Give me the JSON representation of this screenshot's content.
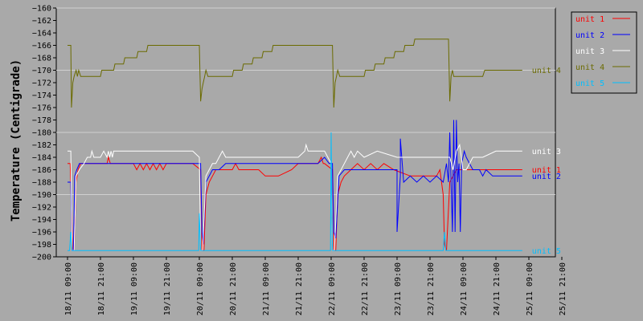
{
  "chart_data": {
    "type": "line",
    "title": "",
    "xlabel": "",
    "ylabel": "Temperature (Centigrade)",
    "ylim": [
      -200,
      -160
    ],
    "yticks": [
      -160,
      -162,
      -164,
      -166,
      -168,
      -170,
      -172,
      -174,
      -176,
      -178,
      -180,
      -182,
      -184,
      -186,
      -188,
      -190,
      -192,
      -194,
      -196,
      -198,
      -200
    ],
    "xlim": [
      0,
      7.5
    ],
    "xtick_labels": [
      "18/11 09:00",
      "18/11 21:00",
      "19/11 09:00",
      "19/11 21:00",
      "20/11 09:00",
      "20/11 21:00",
      "21/11 09:00",
      "21/11 21:00",
      "22/11 09:00",
      "22/11 21:00",
      "23/11 09:00",
      "23/11 21:00",
      "24/11 09:00",
      "24/11 21:00",
      "25/11 09:00",
      "25/11 21:00"
    ],
    "xtick_values": [
      0,
      0.5,
      1,
      1.5,
      2,
      2.5,
      3,
      3.5,
      4,
      4.5,
      5,
      5.5,
      6,
      6.5,
      7,
      7.5
    ],
    "grid": true,
    "legend_position": "top-right",
    "series": [
      {
        "name": "unit 1",
        "color": "#ff0000",
        "end_label": "unit 1",
        "x": [
          0,
          0.04,
          0.08,
          0.1,
          0.13,
          0.16,
          0.2,
          0.25,
          0.3,
          0.6,
          0.62,
          0.65,
          0.67,
          1,
          1.05,
          1.1,
          1.15,
          1.2,
          1.25,
          1.3,
          1.35,
          1.4,
          1.45,
          1.5,
          1.55,
          1.6,
          1.65,
          1.7,
          1.9,
          2.02,
          2.04,
          2.07,
          2.1,
          2.15,
          2.2,
          2.25,
          2.35,
          2.5,
          2.55,
          2.6,
          2.65,
          2.9,
          3.0,
          3.2,
          3.4,
          3.5,
          3.7,
          3.8,
          3.85,
          3.88,
          3.9,
          4.02,
          4.04,
          4.07,
          4.1,
          4.15,
          4.2,
          4.3,
          4.4,
          4.5,
          4.6,
          4.7,
          4.8,
          4.95,
          5.2,
          5.4,
          5.55,
          5.6,
          5.65,
          5.7,
          5.72,
          5.75,
          5.8,
          5.85,
          5.9,
          6.0,
          6.1,
          6.2,
          6.3,
          6.5,
          6.6,
          6.9
        ],
        "y": [
          -185,
          -185,
          -199,
          -199,
          -188,
          -186,
          -185,
          -185,
          -185,
          -185,
          -184,
          -185,
          -185,
          -185,
          -186,
          -185,
          -186,
          -185,
          -186,
          -185,
          -186,
          -185,
          -186,
          -185,
          -185,
          -185,
          -185,
          -185,
          -185,
          -186,
          -199,
          -199,
          -190,
          -188,
          -187,
          -186,
          -186,
          -186,
          -185,
          -186,
          -186,
          -186,
          -187,
          -187,
          -186,
          -185,
          -185,
          -185,
          -184,
          -185,
          -185,
          -186,
          -199,
          -199,
          -190,
          -188,
          -187,
          -186,
          -185,
          -186,
          -185,
          -186,
          -185,
          -186,
          -187,
          -187,
          -187,
          -187,
          -186,
          -190,
          -198,
          -199,
          -188,
          -187,
          -186,
          -186,
          -186,
          -186,
          -186,
          -186,
          -186,
          -186
        ]
      },
      {
        "name": "unit 2",
        "color": "#0000ff",
        "end_label": "unit 2",
        "x": [
          0,
          0.05,
          0.07,
          0.09,
          0.11,
          0.14,
          0.18,
          0.22,
          0.3,
          1,
          1.5,
          1.9,
          2.0,
          2.02,
          2.04,
          2.06,
          2.1,
          2.15,
          2.2,
          2.3,
          2.4,
          2.8,
          3.3,
          3.8,
          3.9,
          3.97,
          4.02,
          4.04,
          4.07,
          4.12,
          4.2,
          4.3,
          4.9,
          5.0,
          5.0,
          5.05,
          5.05,
          5.1,
          5.2,
          5.3,
          5.4,
          5.5,
          5.6,
          5.7,
          5.75,
          5.78,
          5.8,
          5.82,
          5.84,
          5.86,
          5.88,
          5.9,
          5.92,
          5.94,
          5.96,
          5.98,
          6.0,
          6.02,
          6.05,
          6.1,
          6.15,
          6.2,
          6.25,
          6.3,
          6.35,
          6.45,
          6.55,
          6.9
        ],
        "y": [
          -188,
          -188,
          -199,
          -199,
          -187,
          -186,
          -185,
          -185,
          -185,
          -185,
          -185,
          -185,
          -185,
          -185,
          -196,
          -198,
          -188,
          -187,
          -186,
          -186,
          -185,
          -185,
          -185,
          -185,
          -184,
          -185,
          -185,
          -196,
          -197,
          -187,
          -186,
          -186,
          -186,
          -186,
          -196,
          -187,
          -181,
          -188,
          -187,
          -188,
          -187,
          -188,
          -187,
          -188,
          -185,
          -188,
          -180,
          -188,
          -196,
          -178,
          -196,
          -178,
          -188,
          -185,
          -196,
          -185,
          -184,
          -183,
          -184,
          -185,
          -186,
          -186,
          -186,
          -187,
          -186,
          -187,
          -187,
          -187
        ]
      },
      {
        "name": "unit 3",
        "color": "#ffffff",
        "end_label": "unit 3",
        "x": [
          0,
          0.05,
          0.07,
          0.1,
          0.13,
          0.18,
          0.25,
          0.3,
          0.35,
          0.37,
          0.4,
          0.45,
          0.5,
          0.55,
          0.6,
          0.62,
          0.64,
          0.66,
          0.68,
          0.7,
          0.75,
          1.0,
          1.9,
          2.0,
          2.02,
          2.05,
          2.1,
          2.15,
          2.2,
          2.25,
          2.3,
          2.35,
          2.4,
          2.5,
          3.0,
          3.5,
          3.6,
          3.62,
          3.65,
          3.7,
          3.9,
          4.0,
          4.02,
          4.05,
          4.1,
          4.2,
          4.25,
          4.3,
          4.35,
          4.4,
          4.5,
          4.7,
          5.0,
          5.5,
          5.8,
          5.85,
          5.9,
          5.95,
          6.0,
          6.05,
          6.1,
          6.15,
          6.2,
          6.3,
          6.5,
          6.9
        ],
        "y": [
          -183,
          -183,
          -199,
          -199,
          -187,
          -186,
          -185,
          -184,
          -184,
          -183,
          -184,
          -184,
          -184,
          -183,
          -184,
          -183,
          -184,
          -183,
          -184,
          -183,
          -183,
          -183,
          -183,
          -184,
          -199,
          -199,
          -187,
          -186,
          -185,
          -185,
          -184,
          -183,
          -184,
          -184,
          -184,
          -184,
          -183,
          -182,
          -183,
          -183,
          -183,
          -185,
          -199,
          -199,
          -187,
          -185,
          -184,
          -183,
          -184,
          -183,
          -184,
          -183,
          -184,
          -184,
          -184,
          -186,
          -183,
          -182,
          -186,
          -186,
          -185,
          -184,
          -184,
          -184,
          -183,
          -183
        ]
      },
      {
        "name": "unit 4",
        "color": "#6b6b00",
        "end_label": "unit 4",
        "x": [
          0,
          0.03,
          0.05,
          0.06,
          0.08,
          0.1,
          0.13,
          0.15,
          0.17,
          0.2,
          0.3,
          0.5,
          0.52,
          0.6,
          0.7,
          0.72,
          0.85,
          0.87,
          1.0,
          1.05,
          1.07,
          1.2,
          1.22,
          1.35,
          1.37,
          1.5,
          1.52,
          1.6,
          1.7,
          1.72,
          1.9,
          1.95,
          1.97,
          2.0,
          2.02,
          2.04,
          2.06,
          2.08,
          2.1,
          2.13,
          2.2,
          2.3,
          2.5,
          2.52,
          2.65,
          2.67,
          2.8,
          2.82,
          2.95,
          2.97,
          3.1,
          3.12,
          3.25,
          3.27,
          3.4,
          3.42,
          3.6,
          3.8,
          3.85,
          3.88,
          3.9,
          3.95,
          3.97,
          4.0,
          4.02,
          4.04,
          4.06,
          4.08,
          4.1,
          4.13,
          4.2,
          4.3,
          4.5,
          4.52,
          4.65,
          4.67,
          4.8,
          4.82,
          4.95,
          4.97,
          5.1,
          5.12,
          5.25,
          5.27,
          5.4,
          5.42,
          5.6,
          5.78,
          5.8,
          5.82,
          5.84,
          5.86,
          5.9,
          6.0,
          6.2,
          6.3,
          6.33,
          6.9
        ],
        "y": [
          -166,
          -166,
          -166,
          -176,
          -172,
          -171,
          -170,
          -171,
          -170,
          -171,
          -171,
          -171,
          -170,
          -170,
          -170,
          -169,
          -169,
          -168,
          -168,
          -168,
          -167,
          -167,
          -166,
          -166,
          -166,
          -166,
          -166,
          -166,
          -166,
          -166,
          -166,
          -166,
          -166,
          -166,
          -175,
          -173,
          -172,
          -171,
          -170,
          -171,
          -171,
          -171,
          -171,
          -170,
          -170,
          -169,
          -169,
          -168,
          -168,
          -167,
          -167,
          -166,
          -166,
          -166,
          -166,
          -166,
          -166,
          -166,
          -166,
          -166,
          -166,
          -166,
          -166,
          -166,
          -166,
          -176,
          -172,
          -171,
          -170,
          -171,
          -171,
          -171,
          -171,
          -170,
          -170,
          -169,
          -169,
          -168,
          -168,
          -167,
          -167,
          -166,
          -166,
          -165,
          -165,
          -165,
          -165,
          -165,
          -175,
          -171,
          -170,
          -171,
          -171,
          -171,
          -171,
          -171,
          -170,
          -170
        ]
      },
      {
        "name": "unit 5",
        "color": "#00bfff",
        "end_label": "unit 5",
        "x": [
          0,
          0.03,
          0.05,
          0.07,
          0.1,
          1.99,
          2.0,
          2.02,
          2.04,
          3.99,
          4.0,
          4.01,
          4.02,
          4.04,
          5.7,
          5.72,
          5.74,
          6.9
        ],
        "y": [
          -199,
          -199,
          -196,
          -199,
          -199,
          -199,
          -193,
          -199,
          -199,
          -199,
          -180,
          -192,
          -199,
          -199,
          -199,
          -196,
          -199,
          -199
        ]
      }
    ]
  }
}
